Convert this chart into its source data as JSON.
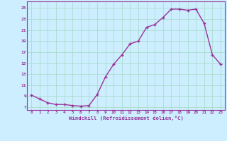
{
  "x": [
    0,
    1,
    2,
    3,
    4,
    5,
    6,
    7,
    8,
    9,
    10,
    11,
    12,
    13,
    14,
    15,
    16,
    17,
    18,
    19,
    20,
    21,
    22,
    23
  ],
  "y": [
    9.2,
    8.5,
    7.8,
    7.5,
    7.5,
    7.3,
    7.2,
    7.3,
    9.3,
    12.5,
    14.8,
    16.5,
    18.5,
    19.0,
    21.5,
    22.0,
    23.3,
    24.8,
    24.8,
    24.6,
    24.8,
    22.2,
    16.5,
    14.8
  ],
  "line_color": "#993399",
  "marker": "+",
  "bg_color": "#cceeff",
  "grid_color": "#aaddcc",
  "xlabel": "Windchill (Refroidissement éolien,°C)",
  "xlabel_color": "#993399",
  "tick_color": "#993399",
  "yticks": [
    7,
    9,
    11,
    13,
    15,
    17,
    19,
    21,
    23,
    25
  ],
  "xticks": [
    0,
    1,
    2,
    3,
    4,
    5,
    6,
    7,
    8,
    9,
    10,
    11,
    12,
    13,
    14,
    15,
    16,
    17,
    18,
    19,
    20,
    21,
    22,
    23
  ],
  "ylim": [
    6.5,
    26.2
  ],
  "xlim": [
    -0.5,
    23.5
  ]
}
